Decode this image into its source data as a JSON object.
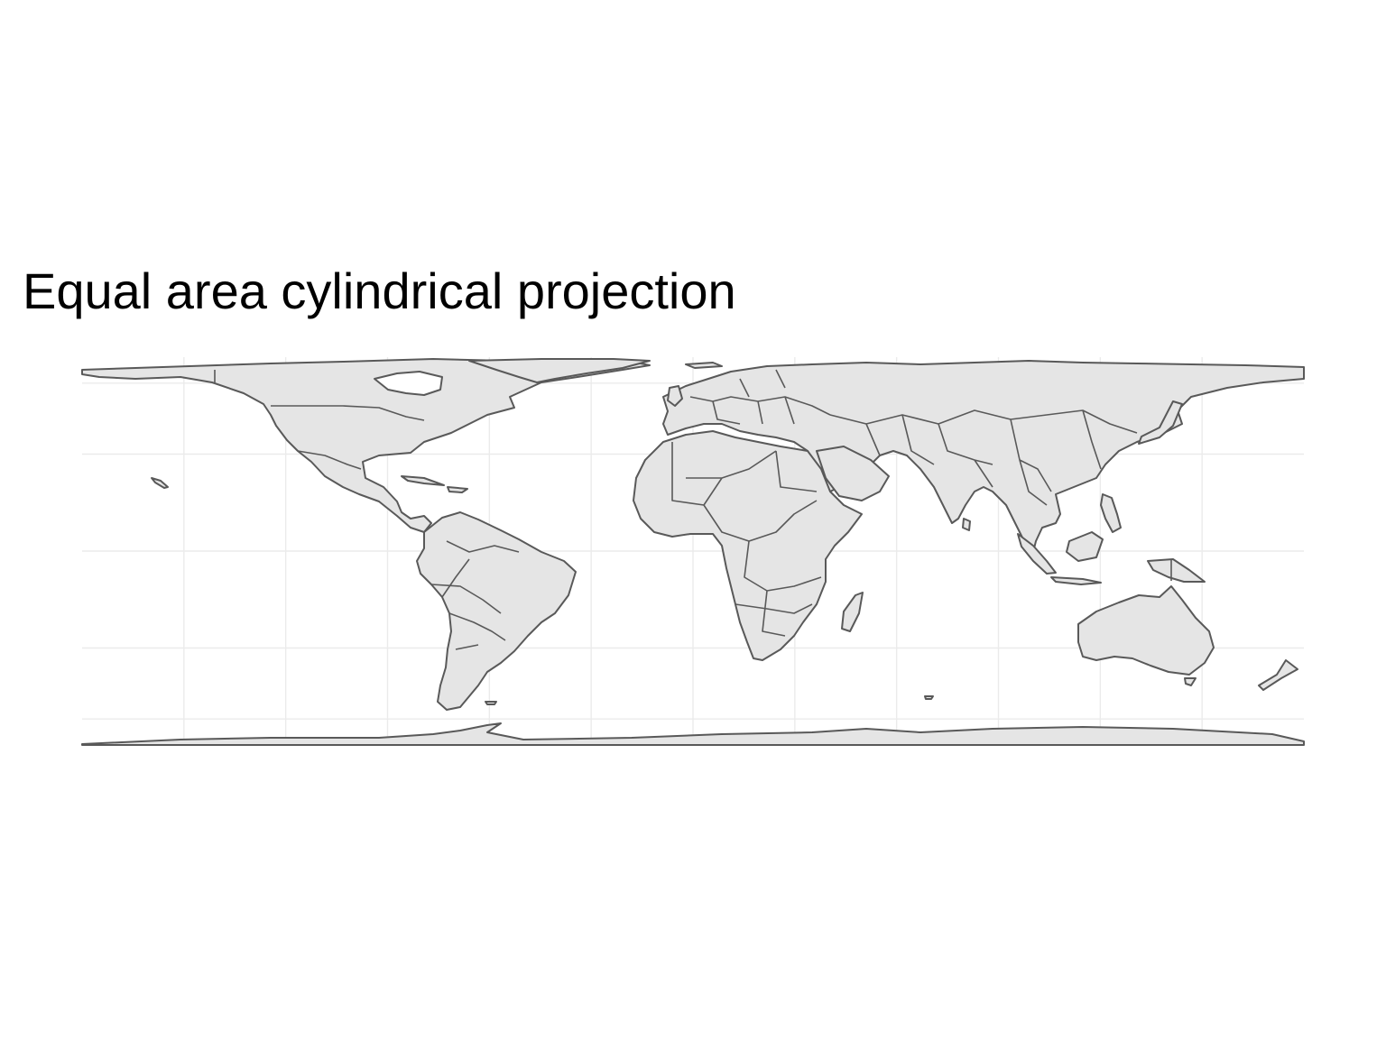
{
  "plot": {
    "title": "Equal area cylindrical projection"
  },
  "map": {
    "projection": "equal area cylindrical",
    "land_fill": "#e5e5e5",
    "border_color": "#595959",
    "grid_color": "#ebebeb",
    "background": "#ffffff",
    "graticule_longitudes": [
      -150,
      -120,
      -90,
      -60,
      -30,
      0,
      30,
      60,
      90,
      120,
      150
    ],
    "graticule_latitudes": [
      -60,
      -30,
      0,
      30,
      60
    ]
  }
}
